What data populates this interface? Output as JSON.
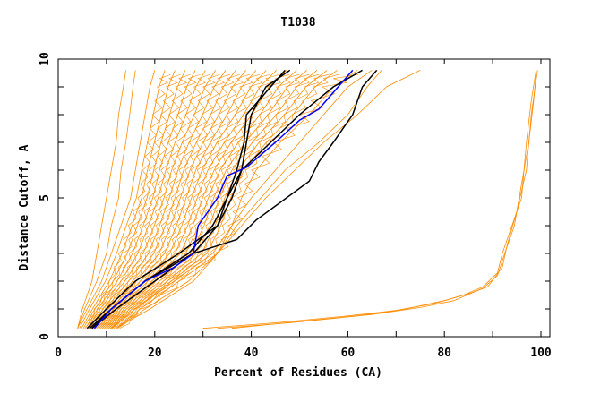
{
  "chart_data": {
    "type": "line",
    "title": "T1038",
    "xlabel": "Percent of Residues (CA)",
    "ylabel": "Distance Cutoff, A",
    "xlim": [
      0,
      102
    ],
    "ylim": [
      0,
      10
    ],
    "xticks": [
      0,
      20,
      40,
      60,
      80,
      100
    ],
    "yticks": [
      0,
      5,
      10
    ],
    "x_minor_step": 10,
    "y_minor_step": 1,
    "grid": false,
    "colors": {
      "models": "#ff8c00",
      "highlight_black": "#000000",
      "highlight_blue": "#0000ff"
    },
    "y_levels": [
      0.3,
      1,
      2,
      3,
      4,
      5,
      6,
      7,
      8,
      9,
      9.6
    ],
    "orange_series_x": [
      [
        4,
        5,
        7,
        8,
        9,
        10,
        11,
        12,
        12.5,
        13.5,
        14
      ],
      [
        4,
        5.5,
        8,
        10,
        11,
        12.5,
        13,
        14,
        14.8,
        15.5,
        16
      ],
      [
        4,
        6,
        9,
        11,
        13,
        15,
        16,
        17,
        18,
        19,
        20
      ],
      [
        4.4,
        6.5,
        9.8,
        12.1,
        14.1,
        16.2,
        17.3,
        18.5,
        19.7,
        20.9,
        22.1
      ],
      [
        4.8,
        7.1,
        10.6,
        13.2,
        15.3,
        17.3,
        18.5,
        19.9,
        21.4,
        22.8,
        24.2
      ],
      [
        5.2,
        7.6,
        11.4,
        14.3,
        16.4,
        18.4,
        19.8,
        21.3,
        23.1,
        24.7,
        26.3
      ],
      [
        5.6,
        8.2,
        12.2,
        15.4,
        17.6,
        19.6,
        21,
        22.8,
        24.8,
        26.6,
        28.4
      ],
      [
        6,
        8.7,
        13,
        16.5,
        18.7,
        20.7,
        22.3,
        24.2,
        26.5,
        28.5,
        30.5
      ],
      [
        6.4,
        9.3,
        13.8,
        17.6,
        19.9,
        21.9,
        23.5,
        25.7,
        28.2,
        30.4,
        32.6
      ],
      [
        6.8,
        9.8,
        14.6,
        18.7,
        21,
        23,
        24.8,
        27.1,
        29.9,
        32.3,
        34.7
      ],
      [
        7.2,
        10.4,
        15.4,
        19.8,
        22.2,
        24.2,
        26,
        28.6,
        31.6,
        34.2,
        36.8
      ],
      [
        7.6,
        10.9,
        16.2,
        20.9,
        23.3,
        25.3,
        27.3,
        30,
        33.3,
        36.1,
        38.9
      ],
      [
        8,
        11.5,
        17,
        22,
        24.5,
        26.5,
        28.5,
        31.5,
        35,
        38,
        41
      ],
      [
        8.4,
        12,
        17.8,
        23.1,
        25.6,
        27.6,
        29.8,
        32.9,
        36.7,
        39.9,
        43.1
      ],
      [
        8.8,
        12.6,
        18.6,
        24.2,
        26.8,
        28.8,
        31,
        34.4,
        38.4,
        41.8,
        45.2
      ],
      [
        9.2,
        13.1,
        19.4,
        25.3,
        27.9,
        29.9,
        32.3,
        35.8,
        40.1,
        43.7,
        47.3
      ],
      [
        9.6,
        13.7,
        20.2,
        26.4,
        29.1,
        31.1,
        33.5,
        37.3,
        41.8,
        45.6,
        49.4
      ],
      [
        10,
        14.2,
        21,
        27.5,
        30.2,
        32.2,
        34.8,
        38.7,
        43.5,
        47.5,
        51.5
      ],
      [
        10.4,
        14.8,
        21.8,
        28.6,
        31.4,
        33.4,
        36,
        40.2,
        45.2,
        49.4,
        53.6
      ],
      [
        10.8,
        15.3,
        22.6,
        29.7,
        32.5,
        34.5,
        37.3,
        41.6,
        46.9,
        51.3,
        55.7
      ],
      [
        11.2,
        15.9,
        23.4,
        30.8,
        33.7,
        35.7,
        38.5,
        43.1,
        48.6,
        53.2,
        57.8
      ],
      [
        12,
        17,
        25,
        33,
        36,
        38,
        41,
        46,
        52,
        57,
        62
      ],
      [
        11,
        16,
        24,
        32,
        36,
        40,
        45,
        50,
        55,
        60,
        65
      ],
      [
        12,
        19,
        28,
        33,
        37,
        42,
        47,
        54,
        60,
        64,
        67
      ],
      [
        12,
        18,
        27,
        33,
        38,
        43,
        49,
        55,
        62,
        68,
        75
      ]
    ],
    "orange_series_points": [
      [
        [
          30,
          0.3
        ],
        [
          45,
          0.5
        ],
        [
          60,
          0.75
        ],
        [
          70,
          0.95
        ],
        [
          78,
          1.2
        ],
        [
          84,
          1.5
        ],
        [
          88,
          1.8
        ],
        [
          91,
          2.3
        ],
        [
          92,
          3
        ],
        [
          94,
          4
        ],
        [
          96,
          5
        ],
        [
          97,
          7
        ],
        [
          98,
          8.5
        ],
        [
          99,
          9.6
        ]
      ],
      [
        [
          33,
          0.3
        ],
        [
          48,
          0.5
        ],
        [
          62,
          0.75
        ],
        [
          72,
          1
        ],
        [
          80,
          1.3
        ],
        [
          86,
          1.6
        ],
        [
          89,
          1.8
        ],
        [
          92,
          2.5
        ],
        [
          93,
          3.3
        ],
        [
          95,
          4.5
        ],
        [
          97,
          6
        ],
        [
          98,
          8
        ],
        [
          99.3,
          9.6
        ]
      ],
      [
        [
          36,
          0.3
        ],
        [
          50,
          0.55
        ],
        [
          65,
          0.8
        ],
        [
          75,
          1.05
        ],
        [
          82,
          1.3
        ],
        [
          88,
          1.75
        ],
        [
          91,
          2.2
        ],
        [
          92.5,
          3
        ],
        [
          94.5,
          4
        ],
        [
          96,
          5.5
        ],
        [
          97.5,
          7
        ],
        [
          98.5,
          8.5
        ],
        [
          99,
          9.5
        ]
      ]
    ],
    "black_series": [
      [
        [
          6,
          0.3
        ],
        [
          10,
          1
        ],
        [
          16,
          2
        ],
        [
          25,
          3
        ],
        [
          33,
          4
        ],
        [
          36,
          5
        ],
        [
          38,
          6
        ],
        [
          39,
          7
        ],
        [
          40,
          8
        ],
        [
          43,
          9
        ],
        [
          48,
          9.6
        ]
      ],
      [
        [
          6.5,
          0.3
        ],
        [
          11,
          1
        ],
        [
          18,
          2
        ],
        [
          27,
          3
        ],
        [
          32,
          4
        ],
        [
          35,
          5
        ],
        [
          37,
          6
        ],
        [
          38.5,
          7
        ],
        [
          39,
          8
        ],
        [
          44,
          9
        ],
        [
          47,
          9.6
        ]
      ],
      [
        [
          7,
          0.3
        ],
        [
          12,
          1
        ],
        [
          20,
          2
        ],
        [
          28,
          3
        ],
        [
          37,
          3.5
        ],
        [
          41,
          4.2
        ],
        [
          52,
          5.6
        ],
        [
          54,
          6.3
        ],
        [
          57,
          7
        ],
        [
          61,
          8
        ],
        [
          63,
          9
        ],
        [
          66,
          9.6
        ]
      ],
      [
        [
          7,
          0.3
        ],
        [
          11,
          1
        ],
        [
          18,
          2
        ],
        [
          28,
          3
        ],
        [
          33,
          4
        ],
        [
          35,
          5
        ],
        [
          38,
          6
        ],
        [
          44,
          7
        ],
        [
          50,
          8
        ],
        [
          57,
          9
        ],
        [
          63,
          9.6
        ]
      ]
    ],
    "blue_series": [
      [
        7.5,
        0.3
      ],
      [
        11,
        1
      ],
      [
        18,
        2
      ],
      [
        24,
        2.5
      ],
      [
        28,
        3
      ],
      [
        29,
        4
      ],
      [
        33,
        5
      ],
      [
        35,
        5.8
      ],
      [
        39,
        6.1
      ],
      [
        45,
        7
      ],
      [
        50,
        7.8
      ],
      [
        54,
        8.2
      ],
      [
        58,
        9
      ],
      [
        61,
        9.6
      ]
    ]
  }
}
